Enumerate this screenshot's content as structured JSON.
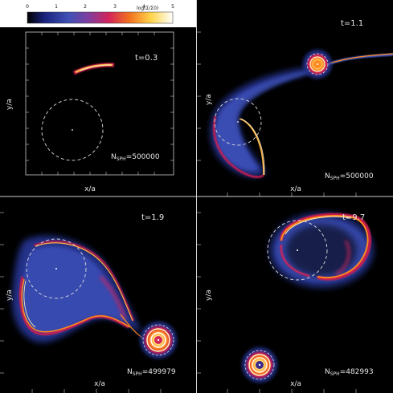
{
  "colorbar": {
    "title": "log(Σ/Σ0)",
    "ticks": [
      "0",
      "1",
      "2",
      "3",
      "4",
      "5"
    ],
    "colors": [
      "#000000",
      "#1a237e",
      "#3f51b5",
      "#7e3fa0",
      "#d3245a",
      "#f2701f",
      "#ffd54a",
      "#ffffff"
    ]
  },
  "panels": [
    {
      "time": "t=0.3",
      "n_prefix": "N",
      "n_sub": "SPH",
      "n_value": "=500000",
      "xlabel": "x/a",
      "ylabel": "y/a"
    },
    {
      "time": "t=1.1",
      "n_prefix": "N",
      "n_sub": "SPH",
      "n_value": "=500000",
      "xlabel": "x/a",
      "ylabel": "y/a"
    },
    {
      "time": "t=1.9",
      "n_prefix": "N",
      "n_sub": "SPH",
      "n_value": "=499979",
      "xlabel": "x/a",
      "ylabel": "y/a"
    },
    {
      "time": "t=9.7",
      "n_prefix": "N",
      "n_sub": "SPH",
      "n_value": "=482993",
      "xlabel": "x/a",
      "ylabel": "y/a"
    }
  ]
}
